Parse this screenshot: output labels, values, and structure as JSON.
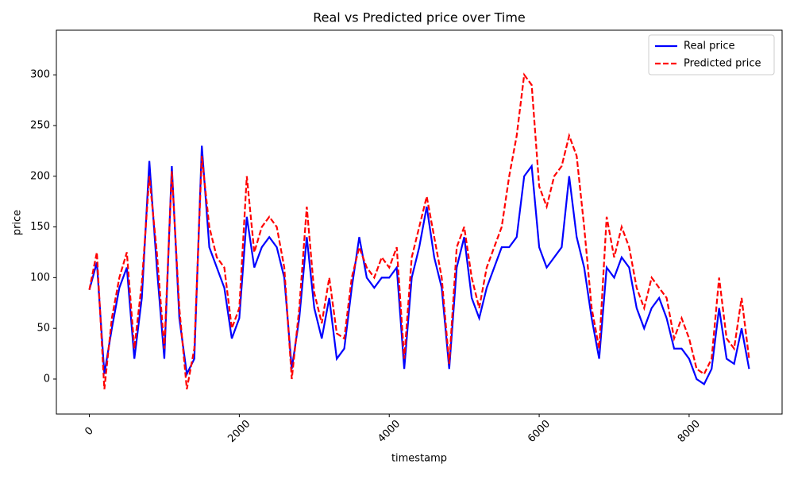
{
  "chart_data": {
    "type": "line",
    "title": "Real vs Predicted price over Time",
    "x_label": "timestamp",
    "y_label": "price",
    "x": [
      0,
      100,
      200,
      300,
      400,
      500,
      600,
      700,
      800,
      900,
      1000,
      1100,
      1200,
      1300,
      1400,
      1500,
      1600,
      1700,
      1800,
      1900,
      2000,
      2100,
      2200,
      2300,
      2400,
      2500,
      2600,
      2700,
      2800,
      2900,
      3000,
      3100,
      3200,
      3300,
      3400,
      3500,
      3600,
      3700,
      3800,
      3900,
      4000,
      4100,
      4200,
      4300,
      4400,
      4500,
      4600,
      4700,
      4800,
      4900,
      5000,
      5100,
      5200,
      5300,
      5400,
      5500,
      5600,
      5700,
      5800,
      5900,
      6000,
      6100,
      6200,
      6300,
      6400,
      6500,
      6600,
      6700,
      6800,
      6900,
      7000,
      7100,
      7200,
      7300,
      7400,
      7500,
      7600,
      7700,
      7800,
      7900,
      8000,
      8100,
      8200,
      8300,
      8400,
      8500,
      8600,
      8700,
      8800
    ],
    "series": [
      {
        "name": "Real price",
        "color": "#0000ff",
        "dashed": false,
        "values": [
          88,
          115,
          5,
          50,
          90,
          110,
          20,
          80,
          215,
          110,
          20,
          210,
          60,
          5,
          20,
          230,
          130,
          110,
          90,
          40,
          60,
          160,
          110,
          130,
          140,
          130,
          100,
          10,
          60,
          140,
          70,
          40,
          80,
          20,
          30,
          90,
          140,
          100,
          90,
          100,
          100,
          110,
          10,
          100,
          130,
          170,
          120,
          90,
          10,
          110,
          140,
          80,
          60,
          90,
          110,
          130,
          130,
          140,
          200,
          210,
          130,
          110,
          120,
          130,
          200,
          140,
          110,
          60,
          20,
          110,
          100,
          120,
          110,
          70,
          50,
          70,
          80,
          60,
          30,
          30,
          20,
          0,
          -5,
          10,
          70,
          20,
          15,
          50,
          10
        ]
      },
      {
        "name": "Predicted price",
        "color": "#ff0000",
        "dashed": true,
        "values": [
          88,
          125,
          -10,
          60,
          100,
          125,
          30,
          95,
          200,
          125,
          30,
          205,
          70,
          -10,
          30,
          220,
          150,
          120,
          110,
          50,
          70,
          200,
          125,
          150,
          160,
          150,
          110,
          0,
          70,
          170,
          85,
          55,
          100,
          45,
          40,
          100,
          130,
          110,
          100,
          120,
          110,
          130,
          20,
          120,
          150,
          180,
          140,
          100,
          15,
          130,
          150,
          100,
          70,
          110,
          130,
          150,
          200,
          240,
          300,
          290,
          190,
          170,
          200,
          210,
          240,
          220,
          150,
          70,
          30,
          160,
          120,
          150,
          130,
          90,
          70,
          100,
          90,
          80,
          40,
          60,
          40,
          10,
          5,
          20,
          100,
          40,
          30,
          80,
          20
        ]
      }
    ],
    "xlim": [
      -440,
      9240
    ],
    "ylim": [
      -34.5,
      344
    ],
    "xticks": [
      0,
      2000,
      4000,
      6000,
      8000
    ],
    "yticks": [
      0,
      50,
      100,
      150,
      200,
      250,
      300
    ],
    "legend": "upper right"
  }
}
